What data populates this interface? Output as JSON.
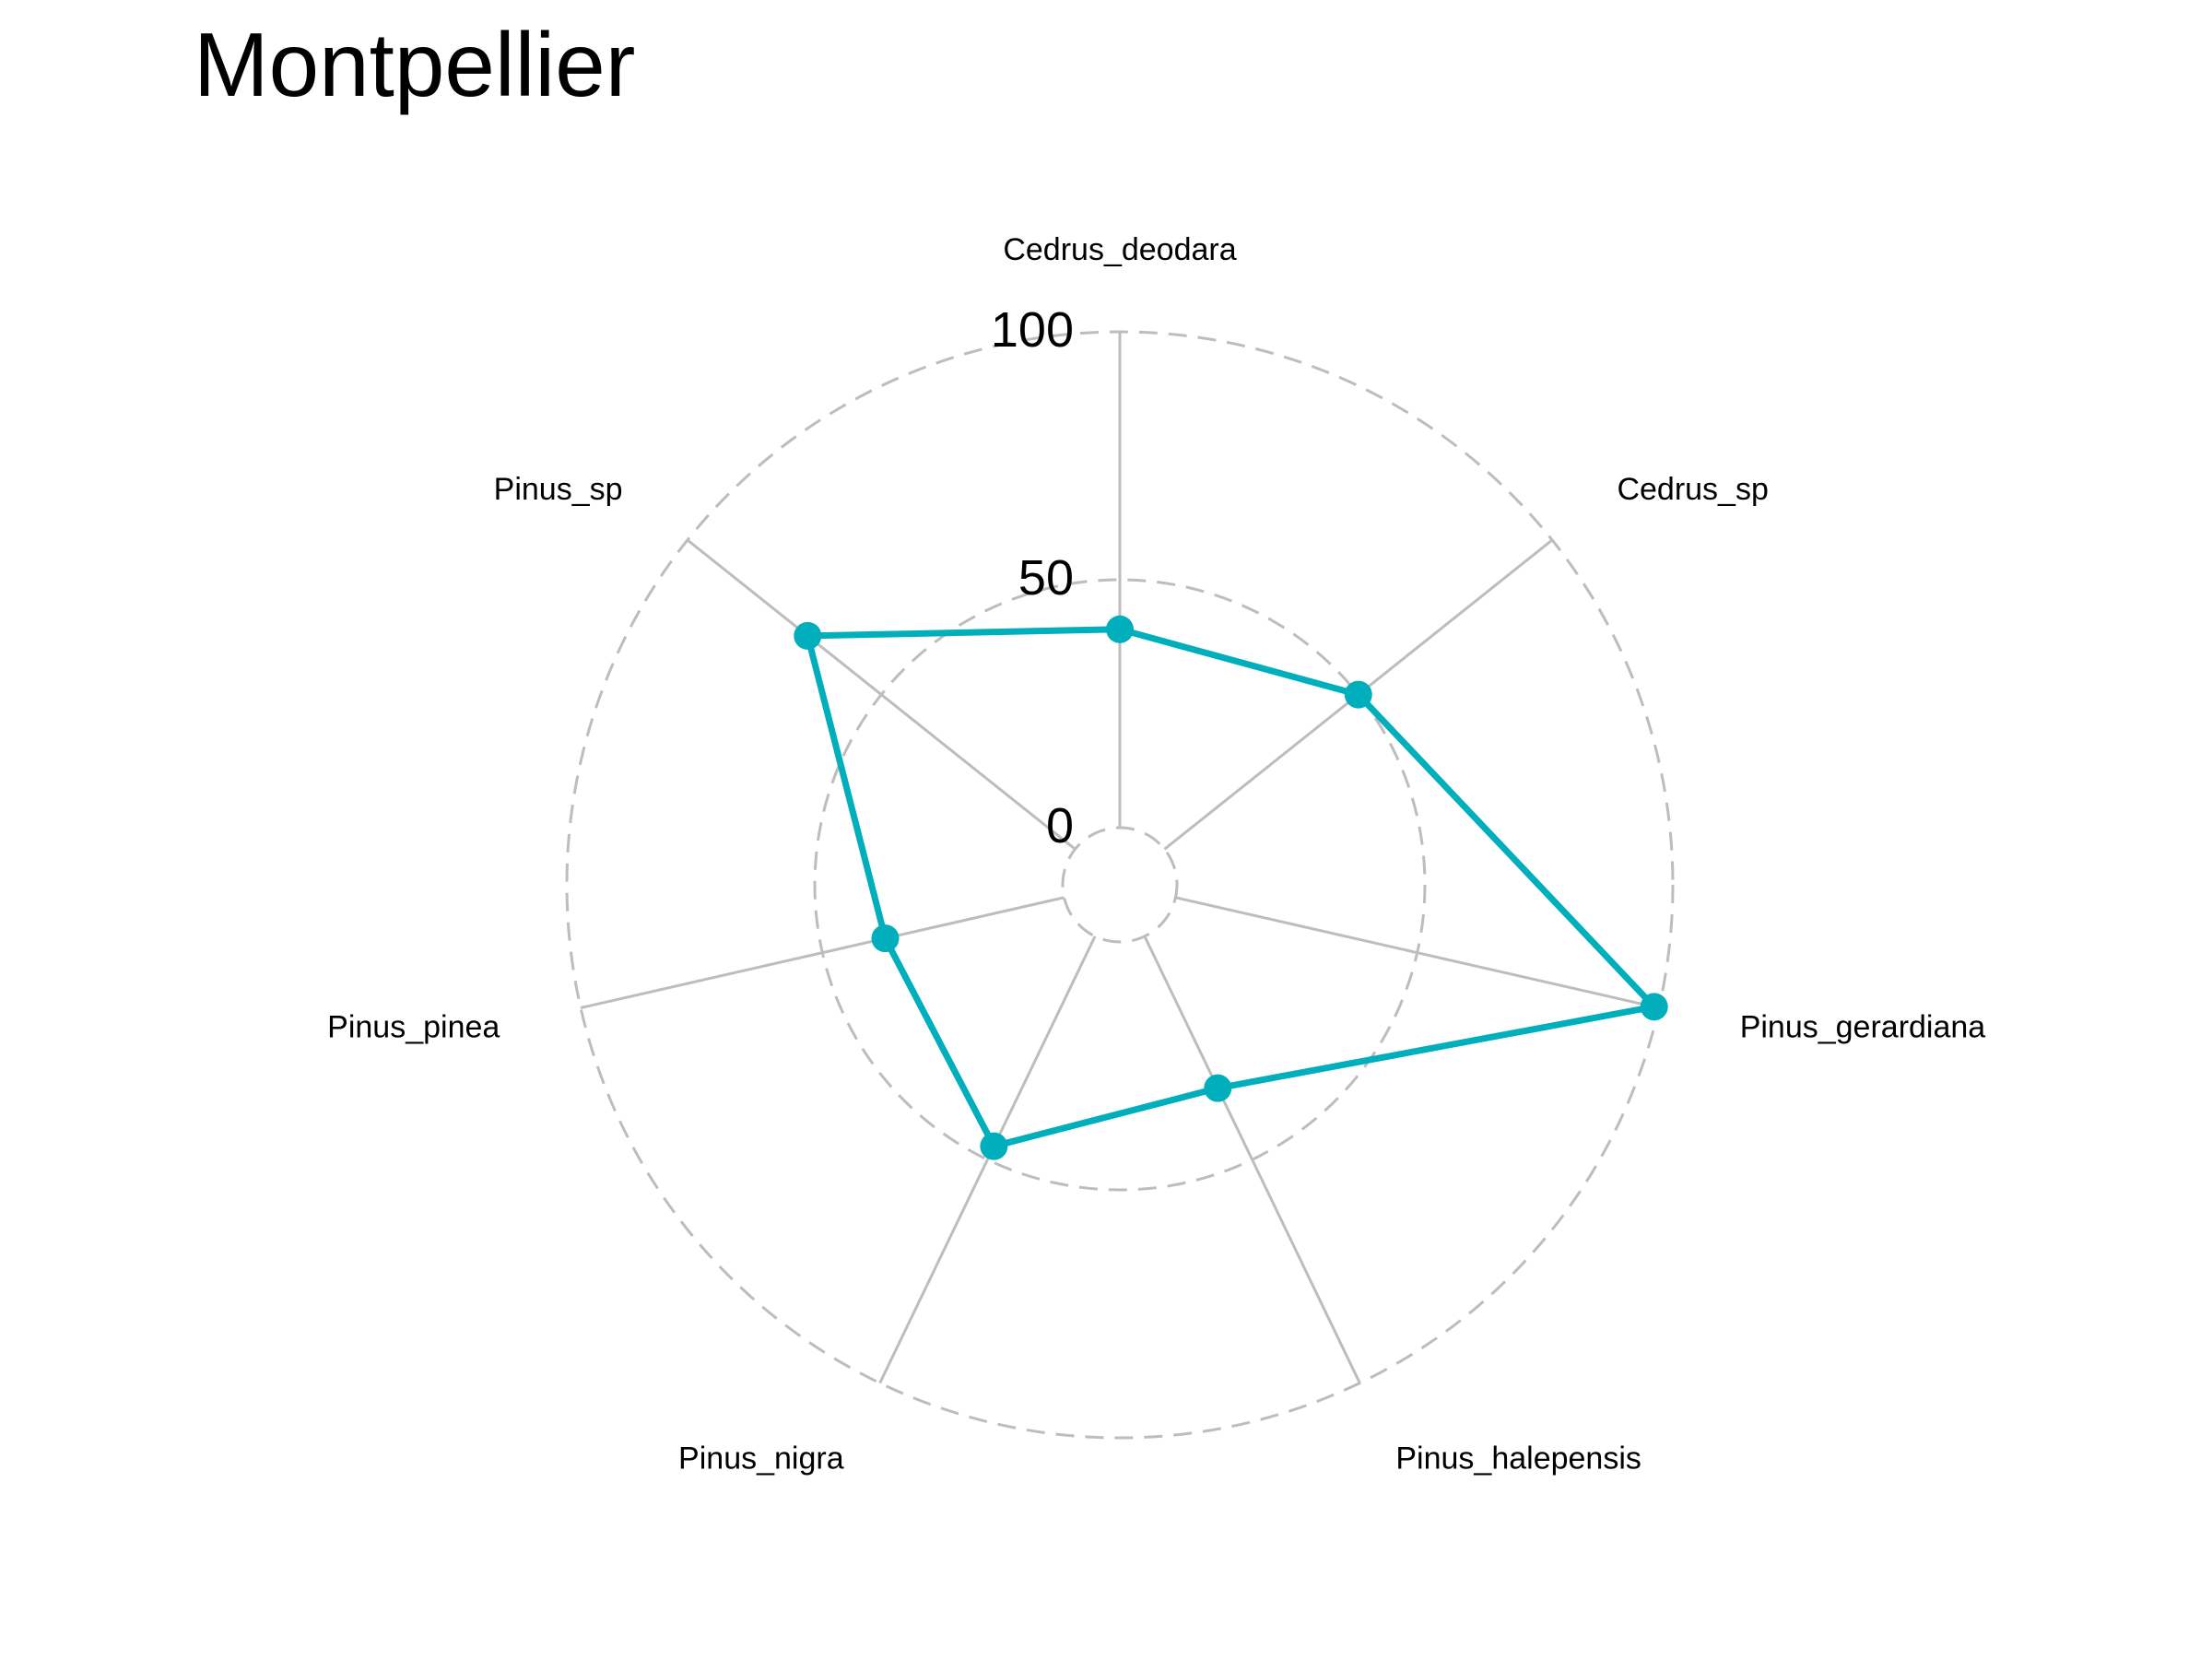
{
  "chart_data": {
    "type": "radar",
    "title": "Montpellier",
    "axes": [
      "Cedrus_deodara",
      "Cedrus_sp",
      "Pinus_gerardiana",
      "Pinus_halepensis",
      "Pinus_nigra",
      "Pinus_pinea",
      "Pinus_sp"
    ],
    "grid_values": [
      0,
      50,
      100
    ],
    "range": [
      0,
      100
    ],
    "series": [
      {
        "values": [
          40,
          50,
          99,
          34,
          47,
          37,
          69
        ],
        "color": "#00AFBB"
      }
    ],
    "grid_color": "#bdbdbd"
  }
}
